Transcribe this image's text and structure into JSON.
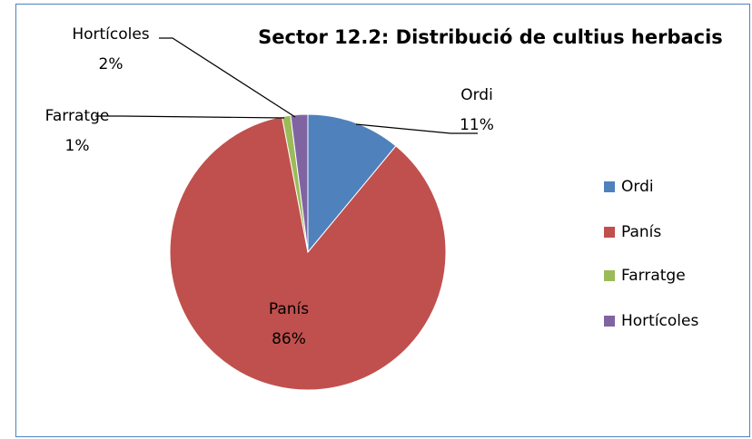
{
  "chart_data": {
    "type": "pie",
    "title": "Sector 12.2: Distribució de cultius herbacis",
    "categories": [
      "Ordi",
      "Panís",
      "Farratge",
      "Hortícoles"
    ],
    "values": [
      11,
      86,
      1,
      2
    ],
    "value_labels": [
      "11%",
      "86%",
      "1%",
      "2%"
    ],
    "colors": [
      "#4f81bd",
      "#c0504d",
      "#9bbb59",
      "#8064a2"
    ],
    "legend": "right"
  }
}
